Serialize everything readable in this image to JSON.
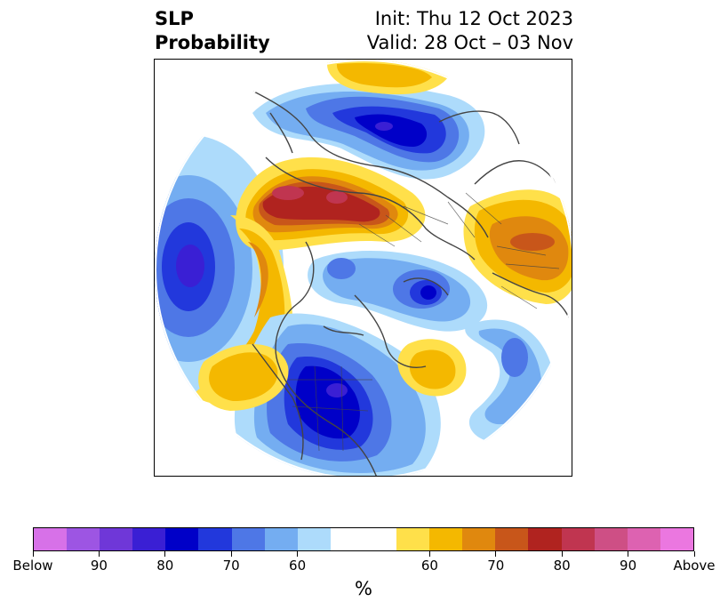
{
  "title": {
    "left_line1": "SLP",
    "left_line2": "Probability",
    "right_line1": "Init: Thu 12 Oct 2023",
    "right_line2": "Valid: 28 Oct – 03 Nov"
  },
  "colorbar": {
    "colors": [
      "#d771e8",
      "#9d55e3",
      "#6f37d8",
      "#3a1fd4",
      "#0000c8",
      "#2238dc",
      "#4e77e6",
      "#74adf1",
      "#addbfb",
      "#ffffff",
      "#ffffff",
      "#ffe04a",
      "#f4b800",
      "#e0880e",
      "#c8561a",
      "#b0231f",
      "#c03550",
      "#ce4f85",
      "#dd62b1",
      "#eb77e0"
    ],
    "tick_labels": [
      "Below",
      "90",
      "80",
      "70",
      "60",
      "60",
      "70",
      "80",
      "90",
      "Above"
    ],
    "unit": "%"
  },
  "palette": {
    "deep_blue": "#0000c8",
    "mid_blue": "#2238dc",
    "blue": "#4e77e6",
    "light_blue": "#74adf1",
    "pale_blue": "#addbfb",
    "yellow": "#ffe04a",
    "gold": "#f4b800",
    "orange": "#e0880e",
    "dark_orange": "#c8561a",
    "red": "#b0231f",
    "rose": "#c03550",
    "pink": "#ce4f85",
    "purple": "#6f37d8"
  }
}
